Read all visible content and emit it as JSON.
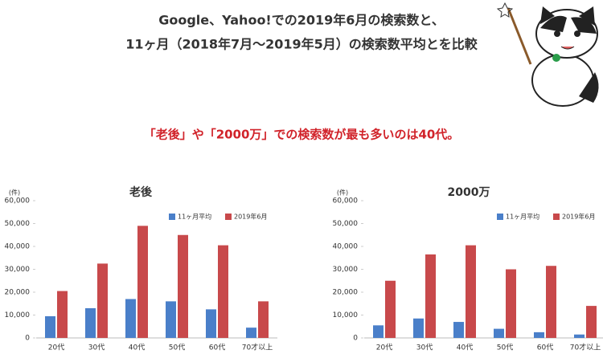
{
  "header": {
    "title_lines": [
      "Google、Yahoo!での2019年6月の検索数と、",
      "11ヶ月（2018年7月〜2019年5月）の検索数平均とを比較"
    ],
    "highlight": "「老後」や「2000万」での検索数が最も多いのは40代。"
  },
  "chart_data": [
    {
      "type": "bar",
      "title": "老後",
      "y_label": "(件)",
      "categories": [
        "20代",
        "30代",
        "40代",
        "50代",
        "60代",
        "70才以上"
      ],
      "series": [
        {
          "name": "11ヶ月平均",
          "color": "#4a7fc9",
          "values": [
            9500,
            13000,
            17000,
            16000,
            12500,
            4500
          ]
        },
        {
          "name": "2019年6月",
          "color": "#c8494b",
          "values": [
            20500,
            32500,
            49000,
            45000,
            40500,
            16000
          ]
        }
      ],
      "ylim": [
        0,
        60000
      ],
      "yticks": [
        0,
        {
          "value": 10000,
          "label": "10,000"
        },
        {
          "value": 20000,
          "label": "20,000"
        },
        {
          "value": 30000,
          "label": "30,000"
        },
        {
          "value": 40000,
          "label": "40,000"
        },
        {
          "value": 50000,
          "label": "50,000"
        },
        {
          "value": 60000,
          "label": "60,000"
        }
      ]
    },
    {
      "type": "bar",
      "title": "2000万",
      "y_label": "(件)",
      "categories": [
        "20代",
        "30代",
        "40代",
        "50代",
        "60代",
        "70才以上"
      ],
      "series": [
        {
          "name": "11ヶ月平均",
          "color": "#4a7fc9",
          "values": [
            5500,
            8500,
            7000,
            4000,
            2500,
            1500
          ]
        },
        {
          "name": "2019年6月",
          "color": "#c8494b",
          "values": [
            25000,
            36500,
            40500,
            30000,
            31500,
            14000
          ]
        }
      ],
      "ylim": [
        0,
        60000
      ],
      "yticks": [
        0,
        {
          "value": 10000,
          "label": "10,000"
        },
        {
          "value": 20000,
          "label": "20,000"
        },
        {
          "value": 30000,
          "label": "30,000"
        },
        {
          "value": 40000,
          "label": "40,000"
        },
        {
          "value": 50000,
          "label": "50,000"
        },
        {
          "value": 60000,
          "label": "60,000"
        }
      ]
    }
  ]
}
